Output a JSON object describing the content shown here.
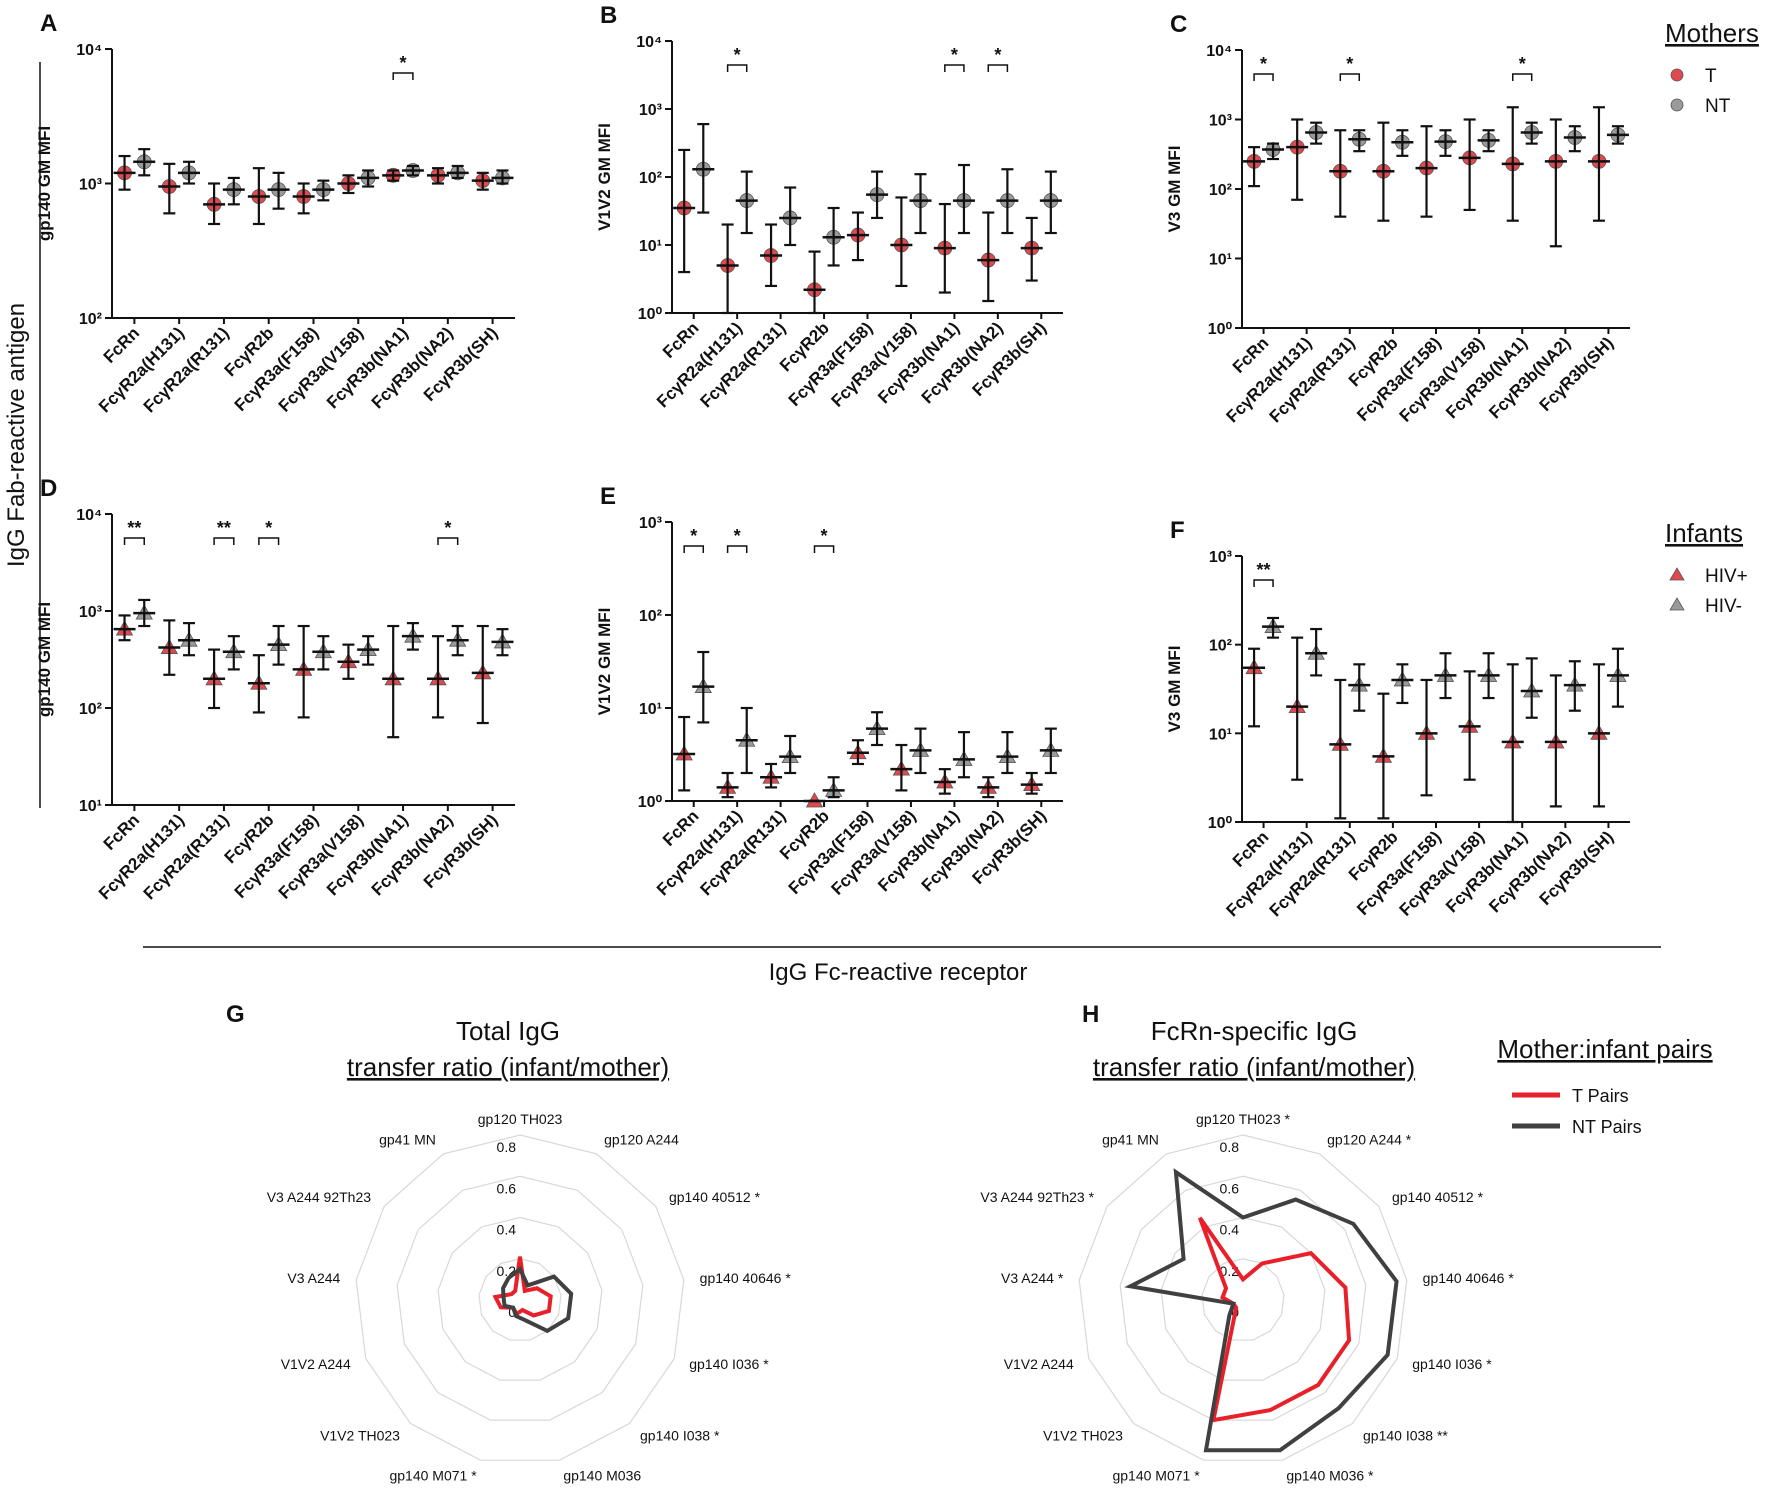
{
  "figure": {
    "row_label": "IgG Fab-reactive antigen",
    "x_label": "IgG Fc-reactive receptor"
  },
  "chart_data": [
    {
      "type": "dot",
      "panel": "A",
      "ylabel": "gp140 GM MFI",
      "log": true,
      "ylim": [
        100,
        10000
      ],
      "yticks": [
        {
          "value": 100,
          "label": "10²"
        },
        {
          "value": 1000,
          "label": "10³"
        },
        {
          "value": 10000,
          "label": "10⁴"
        }
      ],
      "categories": [
        "FcRn",
        "FcγR2a(H131)",
        "FcγR2a(R131)",
        "FcγR2b",
        "FcγR3a(F158)",
        "FcγR3a(V158)",
        "FcγR3b(NA1)",
        "FcγR3b(NA2)",
        "FcγR3b(SH)"
      ],
      "series": [
        {
          "color": "#e04a4f",
          "marker": "circle",
          "values": [
            1200,
            950,
            700,
            800,
            800,
            1000,
            1150,
            1150,
            1050
          ],
          "lows": [
            900,
            600,
            500,
            500,
            600,
            850,
            1050,
            1000,
            900
          ],
          "highs": [
            1600,
            1400,
            1000,
            1300,
            1000,
            1150,
            1250,
            1300,
            1200
          ]
        },
        {
          "color": "#9a9a9a",
          "marker": "circle",
          "values": [
            1450,
            1200,
            900,
            900,
            900,
            1100,
            1250,
            1200,
            1100
          ],
          "lows": [
            1150,
            1000,
            700,
            650,
            750,
            950,
            1150,
            1100,
            1000
          ],
          "highs": [
            1800,
            1450,
            1100,
            1200,
            1050,
            1250,
            1350,
            1350,
            1250
          ]
        }
      ],
      "significance": [
        {
          "category": 6,
          "label": "*"
        }
      ]
    },
    {
      "type": "dot",
      "panel": "B",
      "ylabel": "V1V2 GM MFI",
      "log": true,
      "ylim": [
        1,
        10000
      ],
      "yticks": [
        {
          "value": 1,
          "label": "10⁰"
        },
        {
          "value": 10,
          "label": "10¹"
        },
        {
          "value": 100,
          "label": "10²"
        },
        {
          "value": 1000,
          "label": "10³"
        },
        {
          "value": 10000,
          "label": "10⁴"
        }
      ],
      "categories": [
        "FcRn",
        "FcγR2a(H131)",
        "FcγR2a(R131)",
        "FcγR2b",
        "FcγR3a(F158)",
        "FcγR3a(V158)",
        "FcγR3b(NA1)",
        "FcγR3b(NA2)",
        "FcγR3b(SH)"
      ],
      "series": [
        {
          "color": "#e04a4f",
          "marker": "circle",
          "values": [
            35,
            5,
            7,
            2.2,
            14,
            10,
            9,
            6,
            9
          ],
          "lows": [
            4,
            1,
            2.5,
            1,
            6,
            2.5,
            2,
            1.5,
            3
          ],
          "highs": [
            250,
            20,
            20,
            8,
            30,
            50,
            40,
            30,
            25
          ]
        },
        {
          "color": "#9a9a9a",
          "marker": "circle",
          "values": [
            130,
            45,
            25,
            13,
            55,
            45,
            45,
            45,
            45
          ],
          "lows": [
            30,
            15,
            10,
            5,
            25,
            15,
            15,
            15,
            15
          ],
          "highs": [
            600,
            120,
            70,
            35,
            120,
            110,
            150,
            130,
            120
          ]
        }
      ],
      "significance": [
        {
          "category": 1,
          "label": "*"
        },
        {
          "category": 6,
          "label": "*"
        },
        {
          "category": 7,
          "label": "*"
        }
      ]
    },
    {
      "type": "dot",
      "panel": "C",
      "ylabel": "V3 GM MFI",
      "log": true,
      "ylim": [
        1,
        10000
      ],
      "yticks": [
        {
          "value": 1,
          "label": "10⁰"
        },
        {
          "value": 10,
          "label": "10¹"
        },
        {
          "value": 100,
          "label": "10²"
        },
        {
          "value": 1000,
          "label": "10³"
        },
        {
          "value": 10000,
          "label": "10⁴"
        }
      ],
      "categories": [
        "FcRn",
        "FcγR2a(H131)",
        "FcγR2a(R131)",
        "FcγR2b",
        "FcγR3a(F158)",
        "FcγR3a(V158)",
        "FcγR3b(NA1)",
        "FcγR3b(NA2)",
        "FcγR3b(SH)"
      ],
      "legend_title": "Mothers",
      "series": [
        {
          "name": "T",
          "color": "#e04a4f",
          "marker": "circle",
          "values": [
            250,
            400,
            180,
            180,
            200,
            280,
            230,
            250,
            250
          ],
          "lows": [
            110,
            70,
            40,
            35,
            40,
            50,
            35,
            15,
            35
          ],
          "highs": [
            400,
            1000,
            700,
            900,
            800,
            1000,
            1500,
            1000,
            1500
          ]
        },
        {
          "name": "NT",
          "color": "#9a9a9a",
          "marker": "circle",
          "values": [
            370,
            650,
            520,
            470,
            480,
            500,
            650,
            550,
            600
          ],
          "lows": [
            270,
            450,
            350,
            300,
            300,
            350,
            450,
            350,
            450
          ],
          "highs": [
            450,
            900,
            700,
            700,
            700,
            700,
            900,
            800,
            800
          ]
        }
      ],
      "significance": [
        {
          "category": 0,
          "label": "*"
        },
        {
          "category": 2,
          "label": "*"
        },
        {
          "category": 6,
          "label": "*"
        }
      ]
    },
    {
      "type": "dot",
      "panel": "D",
      "ylabel": "gp140 GM MFI",
      "log": true,
      "ylim": [
        10,
        10000
      ],
      "yticks": [
        {
          "value": 10,
          "label": "10¹"
        },
        {
          "value": 100,
          "label": "10²"
        },
        {
          "value": 1000,
          "label": "10³"
        },
        {
          "value": 10000,
          "label": "10⁴"
        }
      ],
      "categories": [
        "FcRn",
        "FcγR2a(H131)",
        "FcγR2a(R131)",
        "FcγR2b",
        "FcγR3a(F158)",
        "FcγR3a(V158)",
        "FcγR3b(NA1)",
        "FcγR3b(NA2)",
        "FcγR3b(SH)"
      ],
      "series": [
        {
          "color": "#e04a4f",
          "marker": "triangle",
          "values": [
            650,
            420,
            200,
            180,
            250,
            300,
            200,
            200,
            230
          ],
          "lows": [
            500,
            220,
            100,
            90,
            80,
            200,
            50,
            80,
            70
          ],
          "highs": [
            900,
            800,
            400,
            350,
            700,
            450,
            700,
            550,
            700
          ]
        },
        {
          "color": "#9a9a9a",
          "marker": "triangle",
          "values": [
            950,
            500,
            380,
            450,
            380,
            400,
            550,
            500,
            480
          ],
          "lows": [
            700,
            350,
            250,
            280,
            250,
            280,
            400,
            350,
            350
          ],
          "highs": [
            1300,
            750,
            550,
            700,
            550,
            550,
            750,
            700,
            650
          ]
        }
      ],
      "significance": [
        {
          "category": 0,
          "label": "**"
        },
        {
          "category": 2,
          "label": "**"
        },
        {
          "category": 3,
          "label": "*"
        },
        {
          "category": 7,
          "label": "*"
        }
      ]
    },
    {
      "type": "dot",
      "panel": "E",
      "ylabel": "V1V2 GM MFI",
      "log": true,
      "ylim": [
        1,
        1000
      ],
      "yticks": [
        {
          "value": 1,
          "label": "10⁰"
        },
        {
          "value": 10,
          "label": "10¹"
        },
        {
          "value": 100,
          "label": "10²"
        },
        {
          "value": 1000,
          "label": "10³"
        }
      ],
      "categories": [
        "FcRn",
        "FcγR2a(H131)",
        "FcγR2a(R131)",
        "FcγR2b",
        "FcγR3a(F158)",
        "FcγR3a(V158)",
        "FcγR3b(NA1)",
        "FcγR3b(NA2)",
        "FcγR3b(SH)"
      ],
      "series": [
        {
          "color": "#e04a4f",
          "marker": "triangle",
          "values": [
            3.2,
            1.4,
            1.8,
            1,
            3.3,
            2.2,
            1.6,
            1.4,
            1.5
          ],
          "lows": [
            1.3,
            1.1,
            1.4,
            1,
            2.5,
            1.3,
            1.2,
            1.1,
            1.2
          ],
          "highs": [
            8,
            2,
            2.5,
            1,
            4.5,
            4,
            2.2,
            1.8,
            2
          ]
        },
        {
          "color": "#9a9a9a",
          "marker": "triangle",
          "values": [
            17,
            4.5,
            3,
            1.3,
            6,
            3.5,
            2.8,
            3,
            3.5
          ],
          "lows": [
            7,
            2,
            2,
            1.1,
            4,
            2,
            1.8,
            2,
            2
          ],
          "highs": [
            40,
            10,
            5,
            1.8,
            9,
            6,
            5.5,
            5.5,
            6
          ]
        }
      ],
      "significance": [
        {
          "category": 0,
          "label": "*"
        },
        {
          "category": 1,
          "label": "*"
        },
        {
          "category": 3,
          "label": "*"
        }
      ]
    },
    {
      "type": "dot",
      "panel": "F",
      "ylabel": "V3 GM MFI",
      "log": true,
      "ylim": [
        1,
        1000
      ],
      "yticks": [
        {
          "value": 1,
          "label": "10⁰"
        },
        {
          "value": 10,
          "label": "10¹"
        },
        {
          "value": 100,
          "label": "10²"
        },
        {
          "value": 1000,
          "label": "10³"
        }
      ],
      "categories": [
        "FcRn",
        "FcγR2a(H131)",
        "FcγR2a(R131)",
        "FcγR2b",
        "FcγR3a(F158)",
        "FcγR3a(V158)",
        "FcγR3b(NA1)",
        "FcγR3b(NA2)",
        "FcγR3b(SH)"
      ],
      "legend_title": "Infants",
      "series": [
        {
          "name": "HIV+",
          "color": "#e04a4f",
          "marker": "triangle",
          "values": [
            55,
            20,
            7.5,
            5.5,
            10,
            12,
            8,
            8,
            10
          ],
          "lows": [
            12,
            3,
            1.1,
            1.1,
            2,
            3,
            1,
            1.5,
            1.5
          ],
          "highs": [
            90,
            120,
            40,
            28,
            40,
            50,
            60,
            45,
            60
          ]
        },
        {
          "name": "HIV-",
          "color": "#9a9a9a",
          "marker": "triangle",
          "values": [
            160,
            80,
            35,
            40,
            45,
            45,
            30,
            35,
            45
          ],
          "lows": [
            120,
            45,
            18,
            22,
            25,
            25,
            15,
            18,
            20
          ],
          "highs": [
            200,
            150,
            60,
            60,
            80,
            80,
            70,
            65,
            90
          ]
        }
      ],
      "significance": [
        {
          "category": 0,
          "label": "**"
        }
      ]
    },
    {
      "type": "radar",
      "panel": "G",
      "title": "Total IgG",
      "subtitle": "transfer ratio (infant/mother)",
      "rlim": [
        0,
        0.8
      ],
      "rticks": [
        0,
        0.2,
        0.4,
        0.6,
        0.8
      ],
      "categories": [
        "gp120 TH023",
        "gp120 A244",
        "gp140 40512 *",
        "gp140 40646 *",
        "gp140 I036 *",
        "gp140 I038 *",
        "gp140 M036",
        "gp140 M071 *",
        "V1V2 TH023",
        "V1V2 A244",
        "V3 A244",
        "V3 A244 92Th23",
        "gp41 MN"
      ],
      "series": [
        {
          "color": "#e8202a",
          "values": [
            0.21,
            0.05,
            0.1,
            0.15,
            0.15,
            0.1,
            0.05,
            0.07,
            0.05,
            0.1,
            0.12,
            0.05,
            0.05
          ]
        },
        {
          "color": "#404040",
          "values": [
            0.15,
            0.08,
            0.2,
            0.25,
            0.25,
            0.2,
            0.1,
            0.08,
            0.05,
            0.08,
            0.08,
            0.1,
            0.12
          ]
        }
      ]
    },
    {
      "type": "radar",
      "panel": "H",
      "title": "FcRn-specific IgG",
      "subtitle": "transfer ratio (infant/mother)",
      "rlim": [
        0,
        0.8
      ],
      "rticks": [
        0,
        0.2,
        0.4,
        0.6,
        0.8
      ],
      "legend_title": "Mother:infant pairs",
      "categories": [
        "gp120 TH023 *",
        "gp120 A244 *",
        "gp140 40512 *",
        "gp140 40646 *",
        "gp140 I036 *",
        "gp140 I038 **",
        "gp140 M036 *",
        "gp140 M071 *",
        "V1V2 TH023",
        "V1V2 A244",
        "V3 A244 *",
        "V3 A244 92Th23 *",
        "gp41 MN"
      ],
      "series": [
        {
          "name": "T Pairs",
          "color": "#e8202a",
          "values": [
            0.1,
            0.2,
            0.4,
            0.5,
            0.55,
            0.55,
            0.55,
            0.6,
            0.05,
            0.05,
            0.1,
            0.1,
            0.45
          ]
        },
        {
          "name": "NT Pairs",
          "color": "#404040",
          "values": [
            0.4,
            0.55,
            0.65,
            0.75,
            0.75,
            0.7,
            0.75,
            0.75,
            0.1,
            0.05,
            0.55,
            0.35,
            0.7
          ]
        }
      ]
    }
  ]
}
